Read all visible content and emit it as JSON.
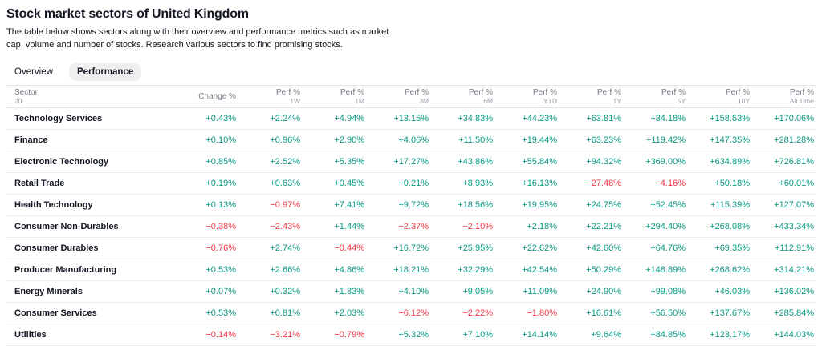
{
  "page": {
    "title": "Stock market sectors of United Kingdom",
    "description_line1": "The table below shows sectors along with their overview and performance metrics such as market",
    "description_line2": "cap, volume and number of stocks. Research various sectors to find promising stocks."
  },
  "tabs": [
    {
      "label": "Overview",
      "active": false
    },
    {
      "label": "Performance",
      "active": true
    }
  ],
  "colors": {
    "positive": "#089981",
    "negative": "#f23645"
  },
  "table": {
    "sector_header": {
      "label": "Sector",
      "count": "20"
    },
    "columns": [
      {
        "label": "Change %",
        "sub": ""
      },
      {
        "label": "Perf %",
        "sub": "1W"
      },
      {
        "label": "Perf %",
        "sub": "1M"
      },
      {
        "label": "Perf %",
        "sub": "3M"
      },
      {
        "label": "Perf %",
        "sub": "6M"
      },
      {
        "label": "Perf %",
        "sub": "YTD"
      },
      {
        "label": "Perf %",
        "sub": "1Y"
      },
      {
        "label": "Perf %",
        "sub": "5Y"
      },
      {
        "label": "Perf %",
        "sub": "10Y"
      },
      {
        "label": "Perf %",
        "sub": "All Time"
      }
    ],
    "rows": [
      {
        "sector": "Technology Services",
        "values": [
          "+0.43%",
          "+2.24%",
          "+4.94%",
          "+13.15%",
          "+34.83%",
          "+44.23%",
          "+63.81%",
          "+84.18%",
          "+158.53%",
          "+170.06%"
        ]
      },
      {
        "sector": "Finance",
        "values": [
          "+0.10%",
          "+0.96%",
          "+2.90%",
          "+4.06%",
          "+11.50%",
          "+19.44%",
          "+63.23%",
          "+119.42%",
          "+147.35%",
          "+281.28%"
        ]
      },
      {
        "sector": "Electronic Technology",
        "values": [
          "+0.85%",
          "+2.52%",
          "+5.35%",
          "+17.27%",
          "+43.86%",
          "+55.84%",
          "+94.32%",
          "+369.00%",
          "+634.89%",
          "+726.81%"
        ]
      },
      {
        "sector": "Retail Trade",
        "values": [
          "+0.19%",
          "+0.63%",
          "+0.45%",
          "+0.21%",
          "+8.93%",
          "+16.13%",
          "−27.48%",
          "−4.16%",
          "+50.18%",
          "+60.01%"
        ]
      },
      {
        "sector": "Health Technology",
        "values": [
          "+0.13%",
          "−0.97%",
          "+7.41%",
          "+9.72%",
          "+18.56%",
          "+19.95%",
          "+24.75%",
          "+52.45%",
          "+115.39%",
          "+127.07%"
        ]
      },
      {
        "sector": "Consumer Non-Durables",
        "values": [
          "−0.38%",
          "−2.43%",
          "+1.44%",
          "−2.37%",
          "−2.10%",
          "+2.18%",
          "+22.21%",
          "+294.40%",
          "+268.08%",
          "+433.34%"
        ]
      },
      {
        "sector": "Consumer Durables",
        "values": [
          "−0.76%",
          "+2.74%",
          "−0.44%",
          "+16.72%",
          "+25.95%",
          "+22.62%",
          "+42.60%",
          "+64.76%",
          "+69.35%",
          "+112.91%"
        ]
      },
      {
        "sector": "Producer Manufacturing",
        "values": [
          "+0.53%",
          "+2.66%",
          "+4.86%",
          "+18.21%",
          "+32.29%",
          "+42.54%",
          "+50.29%",
          "+148.89%",
          "+268.62%",
          "+314.21%"
        ]
      },
      {
        "sector": "Energy Minerals",
        "values": [
          "+0.07%",
          "+0.32%",
          "+1.83%",
          "+4.10%",
          "+9.05%",
          "+11.09%",
          "+24.90%",
          "+99.08%",
          "+46.03%",
          "+136.02%"
        ]
      },
      {
        "sector": "Consumer Services",
        "values": [
          "+0.53%",
          "+0.81%",
          "+2.03%",
          "−6.12%",
          "−2.22%",
          "−1.80%",
          "+16.61%",
          "+56.50%",
          "+137.67%",
          "+285.84%"
        ]
      },
      {
        "sector": "Utilities",
        "values": [
          "−0.14%",
          "−3.21%",
          "−0.79%",
          "+5.32%",
          "+7.10%",
          "+14.14%",
          "+9.64%",
          "+84.85%",
          "+123.17%",
          "+144.03%"
        ]
      }
    ]
  }
}
